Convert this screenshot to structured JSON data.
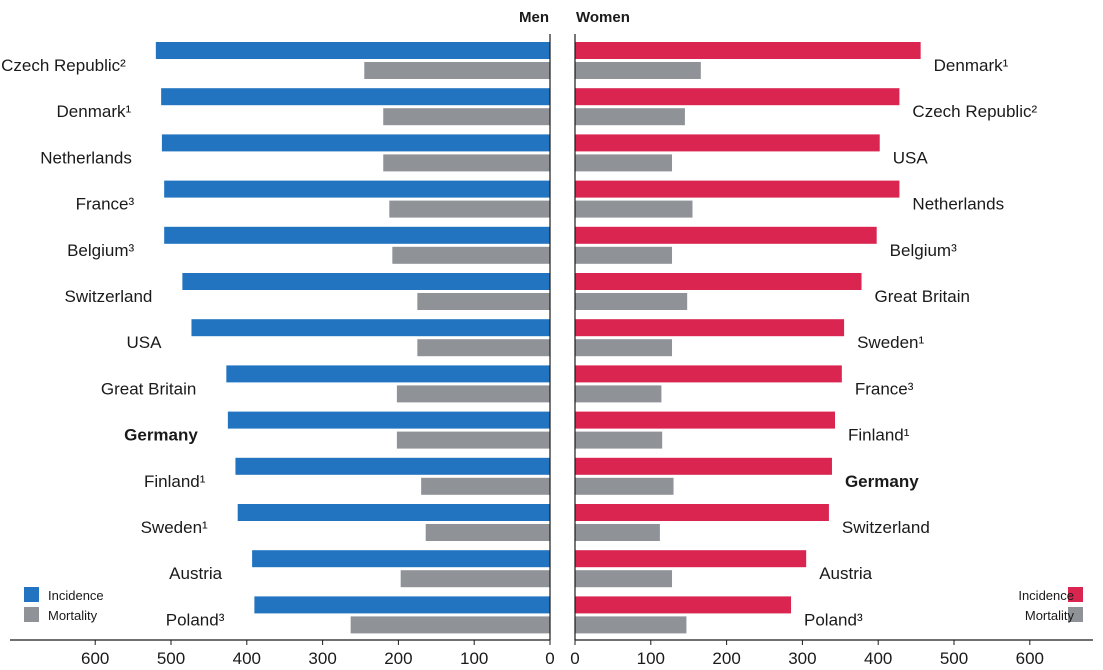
{
  "chart_data": {
    "type": "bar",
    "orientation": "horizontal",
    "legend_position": "bottom",
    "grid": false,
    "panels": [
      {
        "title": "Men",
        "direction": "leftward",
        "xlim": [
          0,
          600
        ],
        "ticks": [
          "600",
          "500",
          "400",
          "300",
          "200",
          "100",
          "0"
        ],
        "legend": {
          "incidence_label": "Incidence",
          "mortality_label": "Mortality",
          "placement": "bottom-left"
        },
        "categories": [
          {
            "label": "Czech Republic²",
            "bold": false,
            "incidence": 520,
            "mortality": 245
          },
          {
            "label": "Denmark¹",
            "bold": false,
            "incidence": 513,
            "mortality": 220
          },
          {
            "label": "Netherlands",
            "bold": false,
            "incidence": 512,
            "mortality": 220
          },
          {
            "label": "France³",
            "bold": false,
            "incidence": 509,
            "mortality": 212
          },
          {
            "label": "Belgium³",
            "bold": false,
            "incidence": 509,
            "mortality": 208
          },
          {
            "label": "Switzerland",
            "bold": false,
            "incidence": 485,
            "mortality": 175
          },
          {
            "label": "USA",
            "bold": false,
            "incidence": 473,
            "mortality": 175
          },
          {
            "label": "Great Britain",
            "bold": false,
            "incidence": 427,
            "mortality": 202
          },
          {
            "label": "Germany",
            "bold": true,
            "incidence": 425,
            "mortality": 202
          },
          {
            "label": "Finland¹",
            "bold": false,
            "incidence": 415,
            "mortality": 170
          },
          {
            "label": "Sweden¹",
            "bold": false,
            "incidence": 412,
            "mortality": 164
          },
          {
            "label": "Austria",
            "bold": false,
            "incidence": 393,
            "mortality": 197
          },
          {
            "label": "Poland³",
            "bold": false,
            "incidence": 390,
            "mortality": 263
          }
        ]
      },
      {
        "title": "Women",
        "direction": "rightward",
        "xlim": [
          0,
          600
        ],
        "ticks": [
          "0",
          "100",
          "200",
          "300",
          "400",
          "500",
          "600"
        ],
        "legend": {
          "incidence_label": "Incidence",
          "mortality_label": "Mortality",
          "placement": "bottom-right"
        },
        "categories": [
          {
            "label": "Denmark¹",
            "bold": false,
            "incidence": 456,
            "mortality": 166
          },
          {
            "label": "Czech Republic²",
            "bold": false,
            "incidence": 428,
            "mortality": 145
          },
          {
            "label": "USA",
            "bold": false,
            "incidence": 402,
            "mortality": 128
          },
          {
            "label": "Netherlands",
            "bold": false,
            "incidence": 428,
            "mortality": 155
          },
          {
            "label": "Belgium³",
            "bold": false,
            "incidence": 398,
            "mortality": 128
          },
          {
            "label": "Great Britain",
            "bold": false,
            "incidence": 378,
            "mortality": 148
          },
          {
            "label": "Sweden¹",
            "bold": false,
            "incidence": 355,
            "mortality": 128
          },
          {
            "label": "France³",
            "bold": false,
            "incidence": 352,
            "mortality": 114
          },
          {
            "label": "Finland¹",
            "bold": false,
            "incidence": 343,
            "mortality": 115
          },
          {
            "label": "Germany",
            "bold": true,
            "incidence": 339,
            "mortality": 130
          },
          {
            "label": "Switzerland",
            "bold": false,
            "incidence": 335,
            "mortality": 112
          },
          {
            "label": "Austria",
            "bold": false,
            "incidence": 305,
            "mortality": 128
          },
          {
            "label": "Poland³",
            "bold": false,
            "incidence": 285,
            "mortality": 147
          }
        ]
      }
    ]
  },
  "colors": {
    "men_incidence": "#2274c0",
    "women_incidence": "#d9254f",
    "mortality": "#8f9398",
    "axis": "#1a1a1a",
    "text": "#1a1a1a"
  }
}
